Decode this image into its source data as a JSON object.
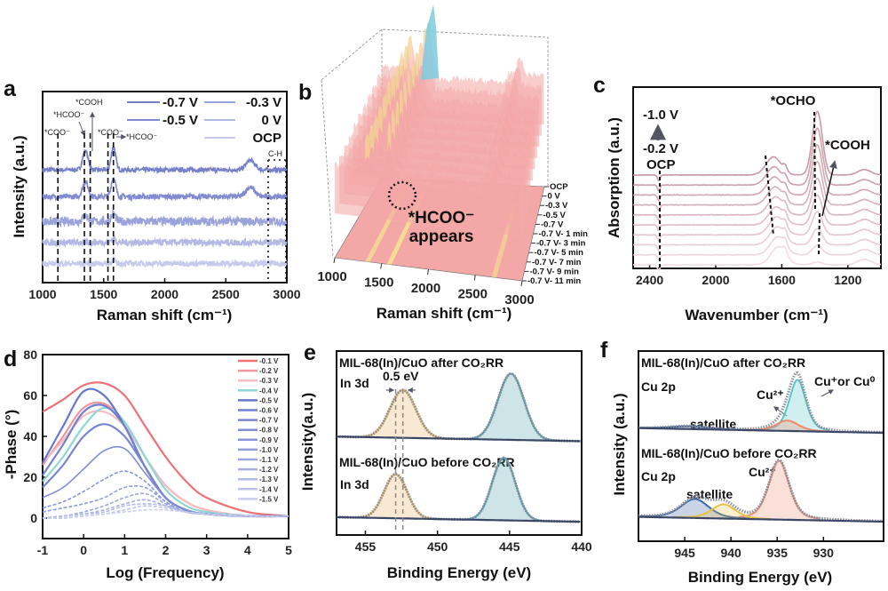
{
  "chart_data": [
    {
      "panel": "a",
      "type": "line",
      "xlabel": "Raman shift (cm⁻¹)",
      "ylabel": "Intensity (a.u.)",
      "xlim": [
        1000,
        3000
      ],
      "xticks": [
        1000,
        1500,
        2000,
        2500,
        3000
      ],
      "legend": [
        "-0.7 V",
        "-0.3 V",
        "-0.5 V",
        "0 V",
        "OCP"
      ],
      "series": [
        {
          "name": "-0.7 V",
          "color": "#7480c8",
          "peaks": [
            [
              1350,
              1.0,
              22
            ],
            [
              1580,
              1.2,
              18
            ],
            [
              2700,
              0.5,
              35
            ]
          ]
        },
        {
          "name": "-0.5 V",
          "color": "#808bcf",
          "peaks": [
            [
              1350,
              0.8,
              22
            ],
            [
              1580,
              1.0,
              18
            ],
            [
              2700,
              0.5,
              35
            ]
          ]
        },
        {
          "name": "-0.3 V",
          "color": "#9ba4da",
          "peaks": [
            [
              1350,
              0.3,
              22
            ],
            [
              1580,
              0.4,
              18
            ]
          ]
        },
        {
          "name": "0 V",
          "color": "#b2b9e4",
          "peaks": [
            [
              1580,
              0.2,
              18
            ]
          ]
        },
        {
          "name": "OCP",
          "color": "#c6cbee",
          "peaks": [
            [
              1580,
              0.2,
              15
            ]
          ]
        }
      ],
      "annotations": [
        {
          "label": "*COO⁻",
          "x": 1125
        },
        {
          "label": "*HCOO⁻",
          "x": 1342
        },
        {
          "label": "*COOH",
          "x": 1390
        },
        {
          "label": "*COO⁻",
          "x": 1535
        },
        {
          "label": "*HCOO⁻",
          "x": 1580
        }
      ],
      "ch_label": "C-H",
      "ch_range": [
        2847,
        2993
      ]
    },
    {
      "panel": "b",
      "type": "surface",
      "xlabel": "Raman shift (cm⁻¹)",
      "xlim": [
        1000,
        3000
      ],
      "xticks": [
        1000,
        1500,
        2000,
        2500,
        3000
      ],
      "y_categories": [
        "OCP",
        "0 V",
        "-0.3 V",
        "-0.5 V",
        "-0.7 V",
        "-0.7 V- 1 min",
        "-0.7 V- 3 min",
        "-0.7 V- 5 min",
        "-0.7 V- 7 min",
        "-0.7 V- 9 min",
        "-0.7 V- 11 min"
      ],
      "ridges": [
        [
          1350,
          1.0
        ],
        [
          1580,
          1.4
        ],
        [
          2700,
          0.5
        ]
      ],
      "annotation": [
        "*HCOO⁻",
        "appears"
      ],
      "colors": {
        "surface": "#f3a7a6",
        "ridge": "#f4ee8a",
        "spike": "#7ccbe0"
      }
    },
    {
      "panel": "c",
      "type": "line",
      "xlabel": "Wavenumber (cm⁻¹)",
      "ylabel": "Absorption (a.u.)",
      "xlim": [
        2500,
        1000
      ],
      "xticks": [
        2400,
        2000,
        1600,
        1200
      ],
      "trace_count": 10,
      "peaks": [
        [
          1650,
          2.0,
          45
        ],
        [
          1580,
          0.6,
          12
        ],
        [
          1385,
          7.0,
          30
        ],
        [
          1100,
          0.6,
          40
        ],
        [
          2345,
          -0.6,
          8
        ]
      ],
      "annotations": {
        "top": "-1.0 V",
        "bottom": "-0.2 V",
        "ocp": "OCP",
        "ocho": "*OCHO",
        "cooh": "*COOH"
      },
      "colors": {
        "top": "#c99aa6",
        "bottom": "#f1dde2"
      }
    },
    {
      "panel": "d",
      "type": "line",
      "xlabel": "Log (Frequency)",
      "ylabel": "-Phase (°)",
      "xlim": [
        -1,
        5
      ],
      "ylim": [
        -10,
        80
      ],
      "xticks": [
        -1,
        0,
        1,
        2,
        3,
        4,
        5
      ],
      "yticks": [
        0,
        20,
        40,
        60,
        80
      ],
      "x": [
        -1,
        -0.5,
        0,
        0.5,
        1,
        1.5,
        2,
        2.5,
        3,
        4,
        5
      ],
      "series": [
        {
          "name": "-0.1 V",
          "color": "#f07078",
          "values": [
            52,
            58,
            65,
            66,
            60,
            45,
            30,
            18,
            10,
            3,
            1
          ]
        },
        {
          "name": "-0.2 V",
          "color": "#f4969b",
          "values": [
            26,
            40,
            54,
            56,
            47,
            30,
            16,
            8,
            4,
            1,
            1
          ]
        },
        {
          "name": "-0.3 V",
          "color": "#f6bcc0",
          "values": [
            27,
            38,
            50,
            52,
            45,
            30,
            16,
            8,
            4,
            1,
            1
          ]
        },
        {
          "name": "-0.4 V",
          "color": "#8fd6d6",
          "values": [
            18,
            30,
            45,
            54,
            47,
            30,
            14,
            6,
            3,
            1,
            1
          ]
        },
        {
          "name": "-0.5 V",
          "color": "#6777cc",
          "values": [
            27,
            45,
            62,
            60,
            45,
            25,
            10,
            4,
            2,
            1,
            1
          ]
        },
        {
          "name": "-0.6 V",
          "color": "#7080cf",
          "values": [
            21,
            36,
            52,
            55,
            45,
            25,
            10,
            4,
            2,
            1,
            1
          ]
        },
        {
          "name": "-0.7 V",
          "color": "#7886d1",
          "values": [
            15,
            26,
            40,
            46,
            40,
            25,
            10,
            4,
            2,
            1,
            1
          ]
        },
        {
          "name": "-0.8 V",
          "color": "#808dd4",
          "values": [
            10,
            15,
            24,
            33,
            34,
            22,
            10,
            4,
            2,
            1,
            1
          ]
        },
        {
          "name": "-0.9 V",
          "color": "#8895d7",
          "values": [
            5,
            8,
            13,
            19,
            23,
            18,
            8,
            3,
            2,
            1,
            1
          ]
        },
        {
          "name": "-1.0 V",
          "color": "#919dda",
          "values": [
            3,
            5,
            7,
            10,
            15,
            15,
            8,
            3,
            2,
            1,
            1
          ]
        },
        {
          "name": "-1.1 V",
          "color": "#9ba6de",
          "values": [
            0,
            1,
            3,
            6,
            10,
            12,
            7,
            3,
            2,
            1,
            1
          ]
        },
        {
          "name": "-1.2 V",
          "color": "#a6afe2",
          "values": [
            0,
            1,
            2,
            4,
            7,
            9,
            6,
            3,
            2,
            1,
            1
          ]
        },
        {
          "name": "-1.3 V",
          "color": "#b1b9e6",
          "values": [
            0,
            1,
            2,
            3,
            6,
            7,
            6,
            3,
            2,
            1,
            1
          ]
        },
        {
          "name": "-1.4 V",
          "color": "#bcc3ea",
          "values": [
            0,
            0,
            1,
            2,
            4,
            6,
            5,
            3,
            2,
            1,
            1
          ]
        },
        {
          "name": "-1.5 V",
          "color": "#c8ceee",
          "values": [
            0,
            0,
            1,
            2,
            3,
            4,
            4,
            3,
            2,
            1,
            1
          ]
        }
      ],
      "legend_position": "top-right"
    },
    {
      "panel": "e",
      "type": "line",
      "xlabel": "Binding Energy (eV)",
      "ylabel": "Intensity(a.u.)",
      "xlim": [
        457,
        440
      ],
      "xticks": [
        455,
        450,
        445,
        440
      ],
      "spectra": [
        {
          "title": "MIL-68(In)/CuO after CO₂RR",
          "subtitle": "In 3d",
          "peaks": [
            [
              452.4,
              2.6,
              0.9,
              "#e7b45c"
            ],
            [
              444.9,
              3.6,
              0.9,
              "#4fa3ad"
            ]
          ]
        },
        {
          "title": "MIL-68(In)/CuO before CO₂RR",
          "subtitle": "In 3d",
          "peaks": [
            [
              452.9,
              2.4,
              0.8,
              "#e7b45c"
            ],
            [
              445.4,
              3.4,
              0.8,
              "#4fa3ad"
            ]
          ]
        }
      ],
      "shift_label": "0.5 eV"
    },
    {
      "panel": "f",
      "type": "line",
      "xlabel": "Binding Energy (eV)",
      "ylabel": "Intensity (a.u.)",
      "xlim": [
        950,
        923.5
      ],
      "xticks": [
        945,
        940,
        935,
        930
      ],
      "spectra": [
        {
          "title": "MIL-68(In)/CuO after CO₂RR",
          "subtitle": "Cu 2p",
          "peaks": [
            [
              932.8,
              2.7,
              0.9,
              "#5cc6c6"
            ],
            [
              933.9,
              0.55,
              1.2,
              "#ef8a6a"
            ],
            [
              944.5,
              0.15,
              2.0,
              "#3f5f9a"
            ]
          ],
          "labels": {
            "cu2": "Cu²⁺",
            "cu1": "Cu⁺or Cu⁰",
            "sat": "satellite"
          }
        },
        {
          "title": "MIL-68(In)/CuO before CO₂RR",
          "subtitle": "Cu 2p",
          "peaks": [
            [
              934.8,
              3.1,
              1.1,
              "#e98f78"
            ],
            [
              943.9,
              1.0,
              1.5,
              "#3d68a8"
            ],
            [
              940.8,
              0.75,
              1.3,
              "#e9c14a"
            ]
          ],
          "labels": {
            "cu2": "Cu²⁺",
            "sat": "satellite"
          }
        }
      ]
    }
  ],
  "panel_labels": {
    "a": "a",
    "b": "b",
    "c": "c",
    "d": "d",
    "e": "e",
    "f": "f"
  }
}
